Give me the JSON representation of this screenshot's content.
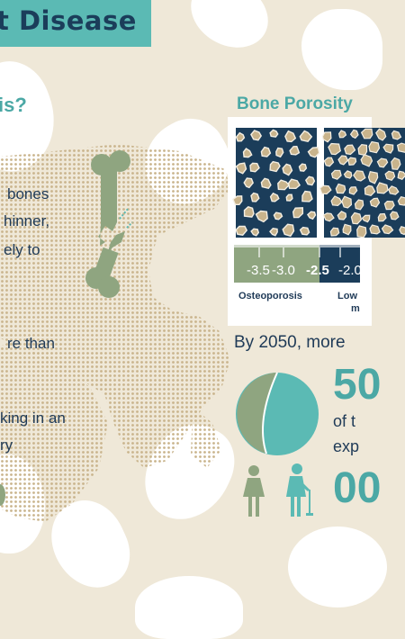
{
  "header": {
    "title": "t Disease"
  },
  "left_panel": {
    "question_heading": "is?",
    "body_lines": [
      "bones",
      "hinner,",
      "ely to",
      "re than",
      "king in an",
      "ry"
    ]
  },
  "porosity_panel": {
    "title": "Bone Porosity",
    "scale_ticks": [
      "-3.5",
      "-3.0",
      "-2.5",
      "-2.0"
    ],
    "labels": {
      "osteoporosis": "Osteoporosis",
      "low_line1": "Low",
      "low_line2": "m"
    }
  },
  "stat_panel": {
    "lead": "By 2050, more",
    "big_number": "50",
    "line_1": "of t",
    "line_2": "exp",
    "big_number_2": "00"
  },
  "palette": {
    "background": "#efe8d8",
    "teal": "#5bbab4",
    "navy": "#1b3d5a",
    "sage": "#8fa580",
    "tan": "#c9b48c"
  },
  "icons": [
    "bone-icon",
    "world-map",
    "woman-icon",
    "elderly-woman-icon",
    "pie-chart-icon"
  ]
}
